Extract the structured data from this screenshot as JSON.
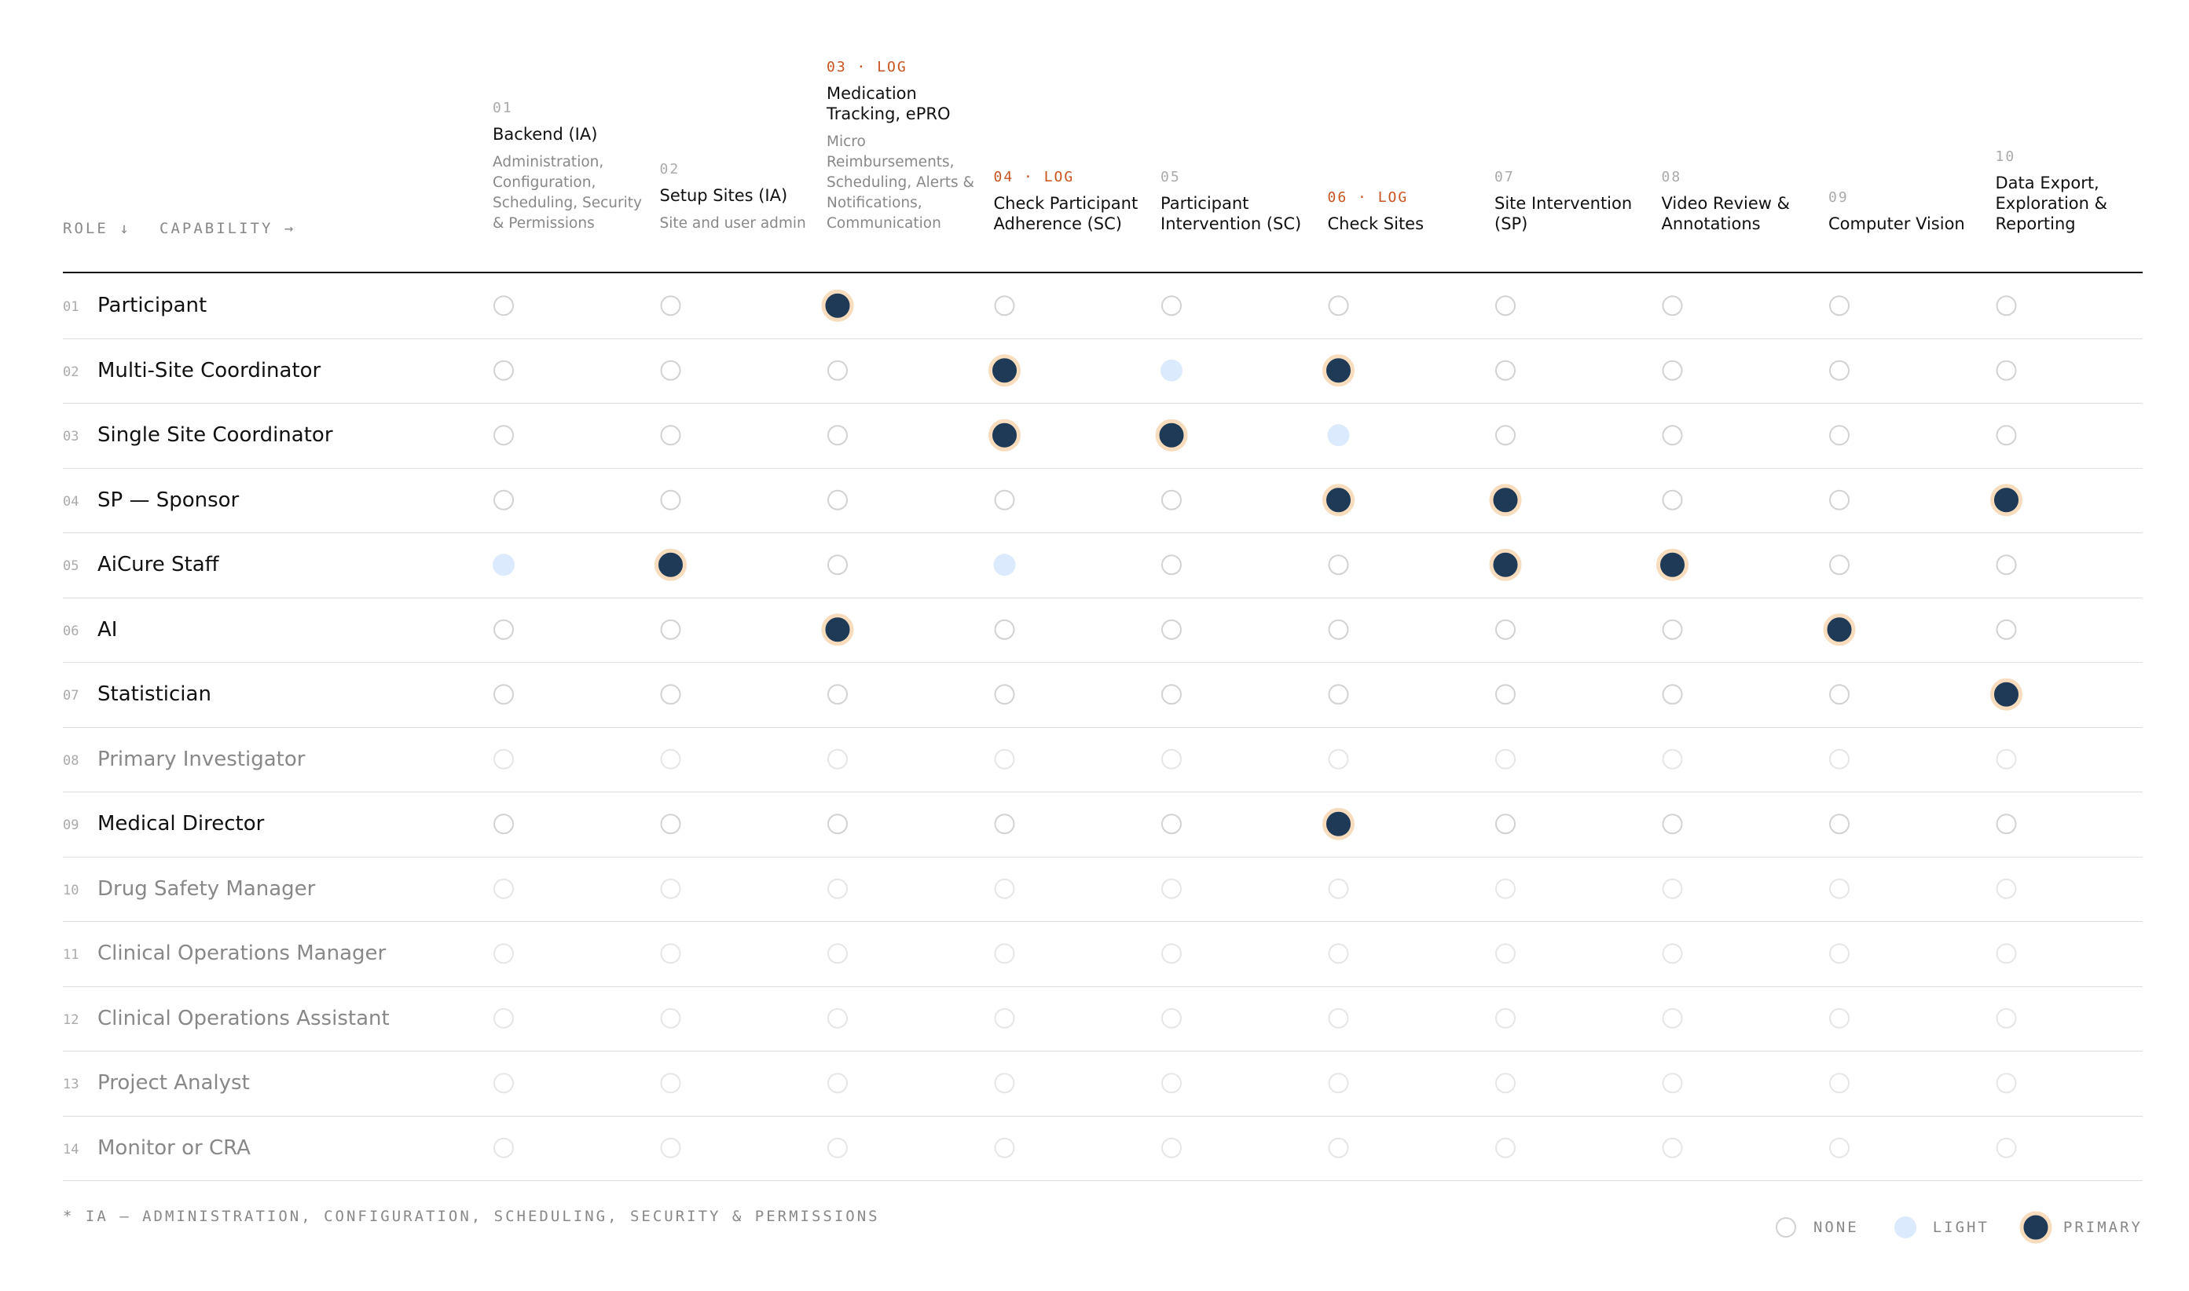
{
  "header": {
    "role_label": "ROLE ↓",
    "capability_label": "CAPABILITY →"
  },
  "columns": [
    {
      "number": "01",
      "title": "Backend (IA)",
      "description": "Administration, Configuration, Scheduling, Security & Permissions"
    },
    {
      "number": "02",
      "title": "Setup Sites (IA)",
      "description": "Site and user admin"
    },
    {
      "number": "03",
      "tag": "· LOG",
      "title": "Medication Tracking, ePRO",
      "description": "Micro Reimbursements, Scheduling, Alerts & Notifications, Communication"
    },
    {
      "number": "04",
      "tag": "· LOG",
      "title": "Check Participant Adherence (SC)"
    },
    {
      "number": "05",
      "title": "Participant Intervention (SC)"
    },
    {
      "number": "06",
      "tag": "· LOG",
      "title": "Check Sites"
    },
    {
      "number": "07",
      "title": "Site Intervention (SP)"
    },
    {
      "number": "08",
      "title": "Video Review & Annotations"
    },
    {
      "number": "09",
      "title": "Computer Vision"
    },
    {
      "number": "10",
      "title": "Data Export, Exploration & Reporting"
    }
  ],
  "rows": [
    {
      "number": "01",
      "name": "Participant",
      "cells": [
        0,
        0,
        2,
        0,
        0,
        0,
        0,
        0,
        0,
        0
      ]
    },
    {
      "number": "02",
      "name": "Multi-Site Coordinator",
      "cells": [
        0,
        0,
        0,
        2,
        1,
        2,
        0,
        0,
        0,
        0
      ]
    },
    {
      "number": "03",
      "name": "Single Site Coordinator",
      "cells": [
        0,
        0,
        0,
        2,
        2,
        1,
        0,
        0,
        0,
        0
      ]
    },
    {
      "number": "04",
      "name": "SP — Sponsor",
      "cells": [
        0,
        0,
        0,
        0,
        0,
        2,
        2,
        0,
        0,
        2
      ]
    },
    {
      "number": "05",
      "name": "AiCure Staff",
      "cells": [
        1,
        2,
        0,
        1,
        0,
        0,
        2,
        2,
        0,
        0
      ]
    },
    {
      "number": "06",
      "name": "AI",
      "cells": [
        0,
        0,
        2,
        0,
        0,
        0,
        0,
        0,
        2,
        0
      ]
    },
    {
      "number": "07",
      "name": "Statistician",
      "cells": [
        0,
        0,
        0,
        0,
        0,
        0,
        0,
        0,
        0,
        2
      ]
    },
    {
      "number": "08",
      "name": "Primary Investigator",
      "cells": [
        0,
        0,
        0,
        0,
        0,
        0,
        0,
        0,
        0,
        0
      ]
    },
    {
      "number": "09",
      "name": "Medical Director",
      "cells": [
        0,
        0,
        0,
        0,
        0,
        2,
        0,
        0,
        0,
        0
      ]
    },
    {
      "number": "10",
      "name": "Drug Safety Manager",
      "cells": [
        0,
        0,
        0,
        0,
        0,
        0,
        0,
        0,
        0,
        0
      ]
    },
    {
      "number": "11",
      "name": "Clinical Operations Manager",
      "cells": [
        0,
        0,
        0,
        0,
        0,
        0,
        0,
        0,
        0,
        0
      ]
    },
    {
      "number": "12",
      "name": "Clinical Operations Assistant",
      "cells": [
        0,
        0,
        0,
        0,
        0,
        0,
        0,
        0,
        0,
        0
      ]
    },
    {
      "number": "13",
      "name": "Project Analyst",
      "cells": [
        0,
        0,
        0,
        0,
        0,
        0,
        0,
        0,
        0,
        0
      ]
    },
    {
      "number": "14",
      "name": "Monitor or CRA",
      "cells": [
        0,
        0,
        0,
        0,
        0,
        0,
        0,
        0,
        0,
        0
      ]
    }
  ],
  "footnote": "* IA — ADMINISTRATION, CONFIGURATION, SCHEDULING, SECURITY & PERMISSIONS",
  "legend": [
    "NONE",
    "LIGHT",
    "PRIMARY"
  ]
}
